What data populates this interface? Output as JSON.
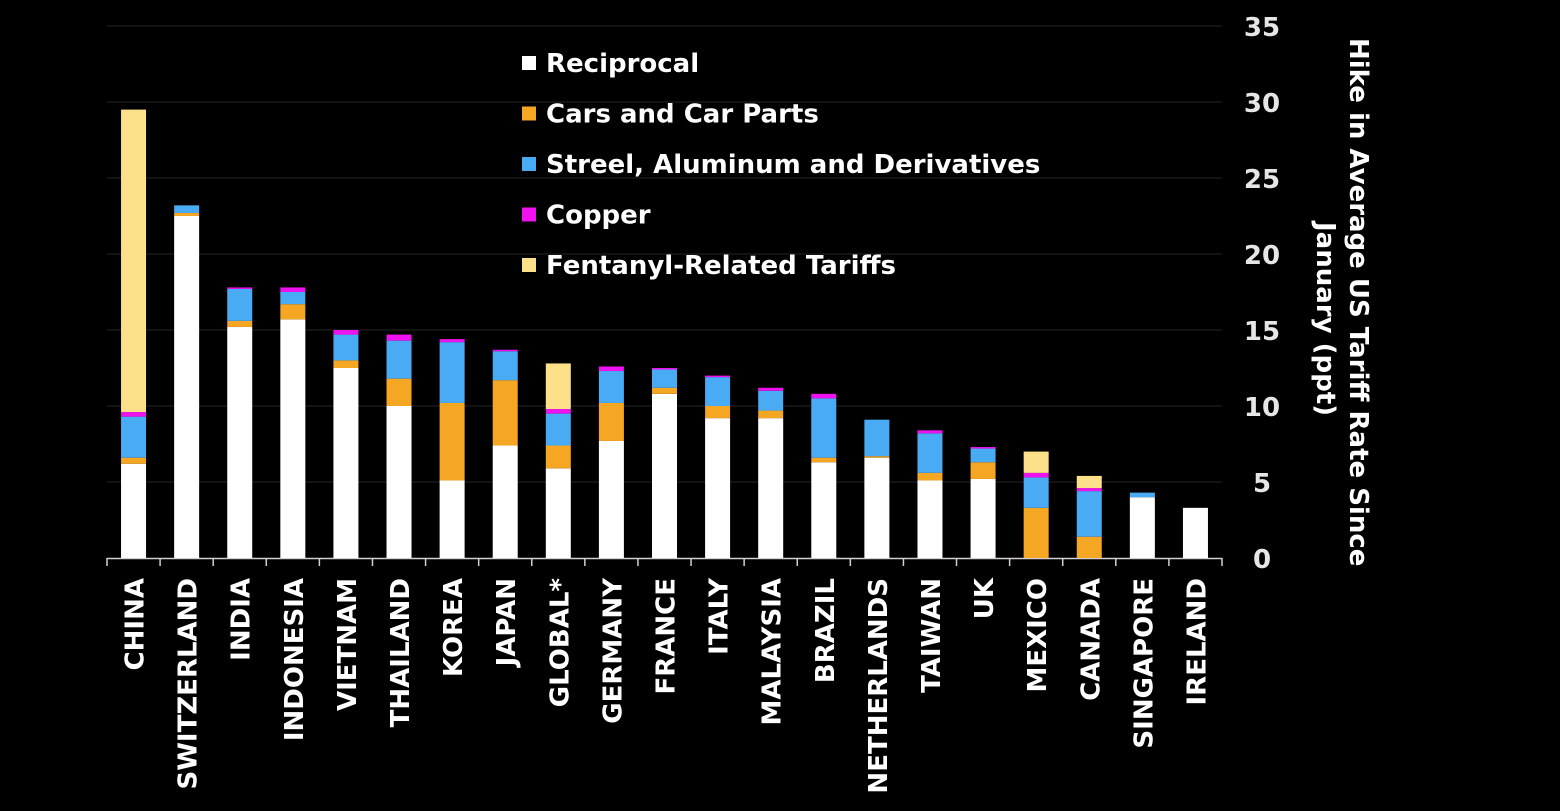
{
  "chart_data": {
    "type": "bar",
    "stacked": true,
    "title": "",
    "xlabel": "",
    "ylabel": "Hike in Average US Tariff Rate Since January (ppt)",
    "ylabel_lines": [
      "Hike in Average US Tariff Rate Since",
      "January (ppt)"
    ],
    "ylim": [
      0,
      35
    ],
    "yticks": [
      0,
      5,
      10,
      15,
      20,
      25,
      30,
      35
    ],
    "y_axis_side": "right",
    "grid": true,
    "legend_position": "top-center",
    "categories": [
      "CHINA",
      "SWITZERLAND",
      "INDIA",
      "INDONESIA",
      "VIETNAM",
      "THAILAND",
      "KOREA",
      "JAPAN",
      "GLOBAL*",
      "GERMANY",
      "FRANCE",
      "ITALY",
      "MALAYSIA",
      "BRAZIL",
      "NETHERLANDS",
      "TAIWAN",
      "UK",
      "MEXICO",
      "CANADA",
      "SINGAPORE",
      "IRELAND"
    ],
    "series": [
      {
        "name": "Reciprocal",
        "color": "#ffffff",
        "values": [
          6.2,
          22.5,
          15.2,
          15.7,
          12.5,
          10.0,
          5.1,
          7.4,
          5.9,
          7.7,
          10.8,
          9.2,
          9.2,
          6.3,
          6.6,
          5.1,
          5.2,
          0,
          0,
          4.0,
          3.3
        ]
      },
      {
        "name": "Cars and Car Parts",
        "color": "#f5a623",
        "values": [
          0.4,
          0.2,
          0.4,
          1.0,
          0.5,
          1.8,
          5.1,
          4.3,
          1.5,
          2.5,
          0.4,
          0.8,
          0.5,
          0.3,
          0.1,
          0.5,
          1.1,
          3.3,
          1.4,
          0,
          0
        ]
      },
      {
        "name": "Streel, Aluminum and Derivatives",
        "color": "#4aabf5",
        "values": [
          2.7,
          0.5,
          2.1,
          0.8,
          1.7,
          2.5,
          4.0,
          1.9,
          2.1,
          2.1,
          1.2,
          1.9,
          1.3,
          3.9,
          2.4,
          2.6,
          0.9,
          2.0,
          3.0,
          0.3,
          0
        ]
      },
      {
        "name": "Copper",
        "color": "#ee12ee",
        "values": [
          0.3,
          0,
          0.1,
          0.3,
          0.3,
          0.4,
          0.2,
          0.1,
          0.3,
          0.3,
          0.1,
          0.1,
          0.2,
          0.3,
          0,
          0.2,
          0.1,
          0.3,
          0.2,
          0,
          0
        ]
      },
      {
        "name": "Fentanyl-Related Tariffs",
        "color": "#fde08a",
        "values": [
          19.9,
          0,
          0,
          0,
          0,
          0,
          0,
          0,
          3.0,
          0,
          0,
          0,
          0,
          0,
          0,
          0,
          0,
          1.4,
          0.8,
          0,
          0
        ]
      }
    ]
  }
}
